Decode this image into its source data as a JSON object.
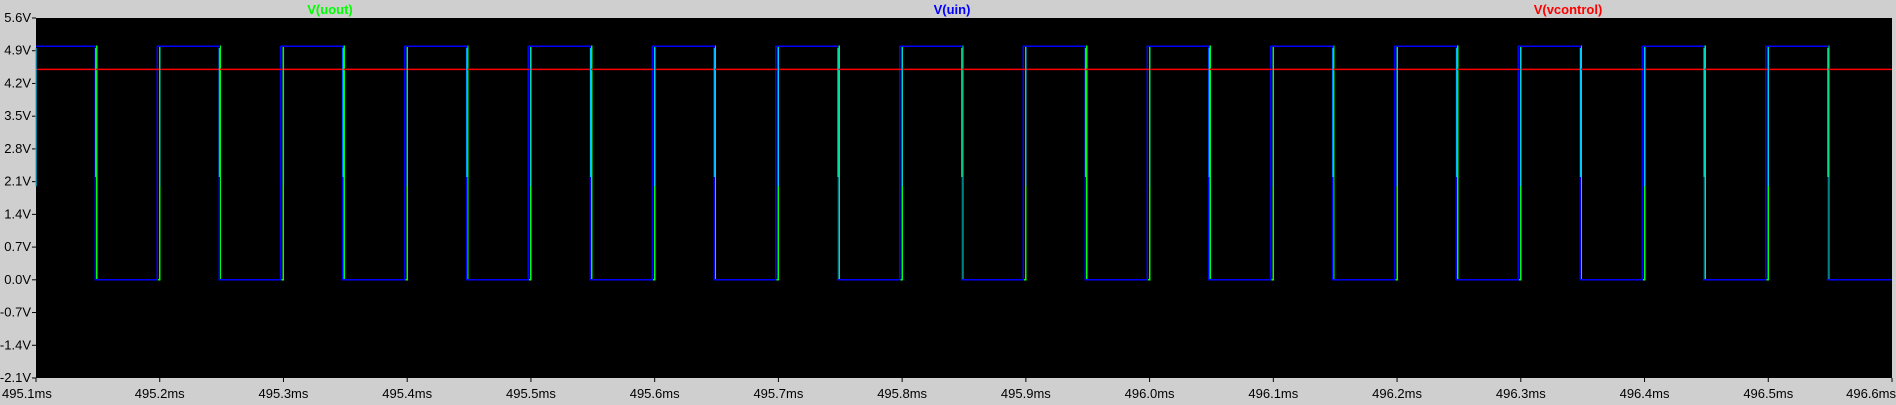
{
  "chart_data": {
    "type": "line",
    "title": "",
    "xlabel": "",
    "ylabel": "",
    "x_unit": "ms",
    "y_unit": "V",
    "xlim": [
      495.1,
      496.6
    ],
    "ylim": [
      -2.1,
      5.6
    ],
    "x_ticks": [
      495.1,
      495.2,
      495.3,
      495.4,
      495.5,
      495.6,
      495.7,
      495.8,
      495.9,
      496.0,
      496.1,
      496.2,
      496.3,
      496.4,
      496.5,
      496.6
    ],
    "x_tick_labels": [
      "495.1ms",
      "495.2ms",
      "495.3ms",
      "495.4ms",
      "495.5ms",
      "495.6ms",
      "495.7ms",
      "495.8ms",
      "495.9ms",
      "496.0ms",
      "496.1ms",
      "496.2ms",
      "496.3ms",
      "496.4ms",
      "496.5ms",
      "496.6ms"
    ],
    "y_ticks": [
      5.6,
      4.9,
      4.2,
      3.5,
      2.8,
      2.1,
      1.4,
      0.7,
      0.0,
      -0.7,
      -1.4,
      -2.1
    ],
    "y_tick_labels": [
      "5.6V",
      "4.9V",
      "4.2V",
      "3.5V",
      "2.8V",
      "2.1V",
      "1.4V",
      "0.7V",
      "0.0V",
      "-0.7V",
      "-1.4V",
      "-2.1V"
    ],
    "grid": false,
    "background": "#000000",
    "series": [
      {
        "name": "V(uout)",
        "color": "#00ff00",
        "style": "square",
        "high": 5.0,
        "low": 0.0,
        "high_intervals": [
          [
            495.1,
            495.149
          ],
          [
            495.2,
            495.249
          ],
          [
            495.3,
            495.349
          ],
          [
            495.4,
            495.449
          ],
          [
            495.5,
            495.549
          ],
          [
            495.6,
            495.649
          ],
          [
            495.7,
            495.749
          ],
          [
            495.8,
            495.849
          ],
          [
            495.9,
            495.949
          ],
          [
            496.0,
            496.049
          ],
          [
            496.1,
            496.149
          ],
          [
            496.2,
            496.249
          ],
          [
            496.3,
            496.349
          ],
          [
            496.4,
            496.449
          ],
          [
            496.5,
            496.549
          ]
        ]
      },
      {
        "name": "V(uin)",
        "color": "#0000ff",
        "style": "square",
        "high": 5.0,
        "low": 0.0,
        "high_intervals": [
          [
            495.1,
            495.148
          ],
          [
            495.198,
            495.248
          ],
          [
            495.298,
            495.348
          ],
          [
            495.398,
            495.448
          ],
          [
            495.498,
            495.548
          ],
          [
            495.598,
            495.648
          ],
          [
            495.698,
            495.748
          ],
          [
            495.798,
            495.848
          ],
          [
            495.898,
            495.948
          ],
          [
            495.998,
            496.048
          ],
          [
            496.098,
            496.148
          ],
          [
            496.198,
            496.248
          ],
          [
            496.298,
            496.348
          ],
          [
            496.398,
            496.448
          ],
          [
            496.498,
            496.548
          ]
        ]
      },
      {
        "name": "V(vcontrol)",
        "color": "#ff0000",
        "style": "constant",
        "value": 4.5,
        "x": [
          495.1,
          496.6
        ],
        "y": [
          4.5,
          4.5
        ]
      }
    ],
    "edge_marker_color": "#00c8ff"
  }
}
